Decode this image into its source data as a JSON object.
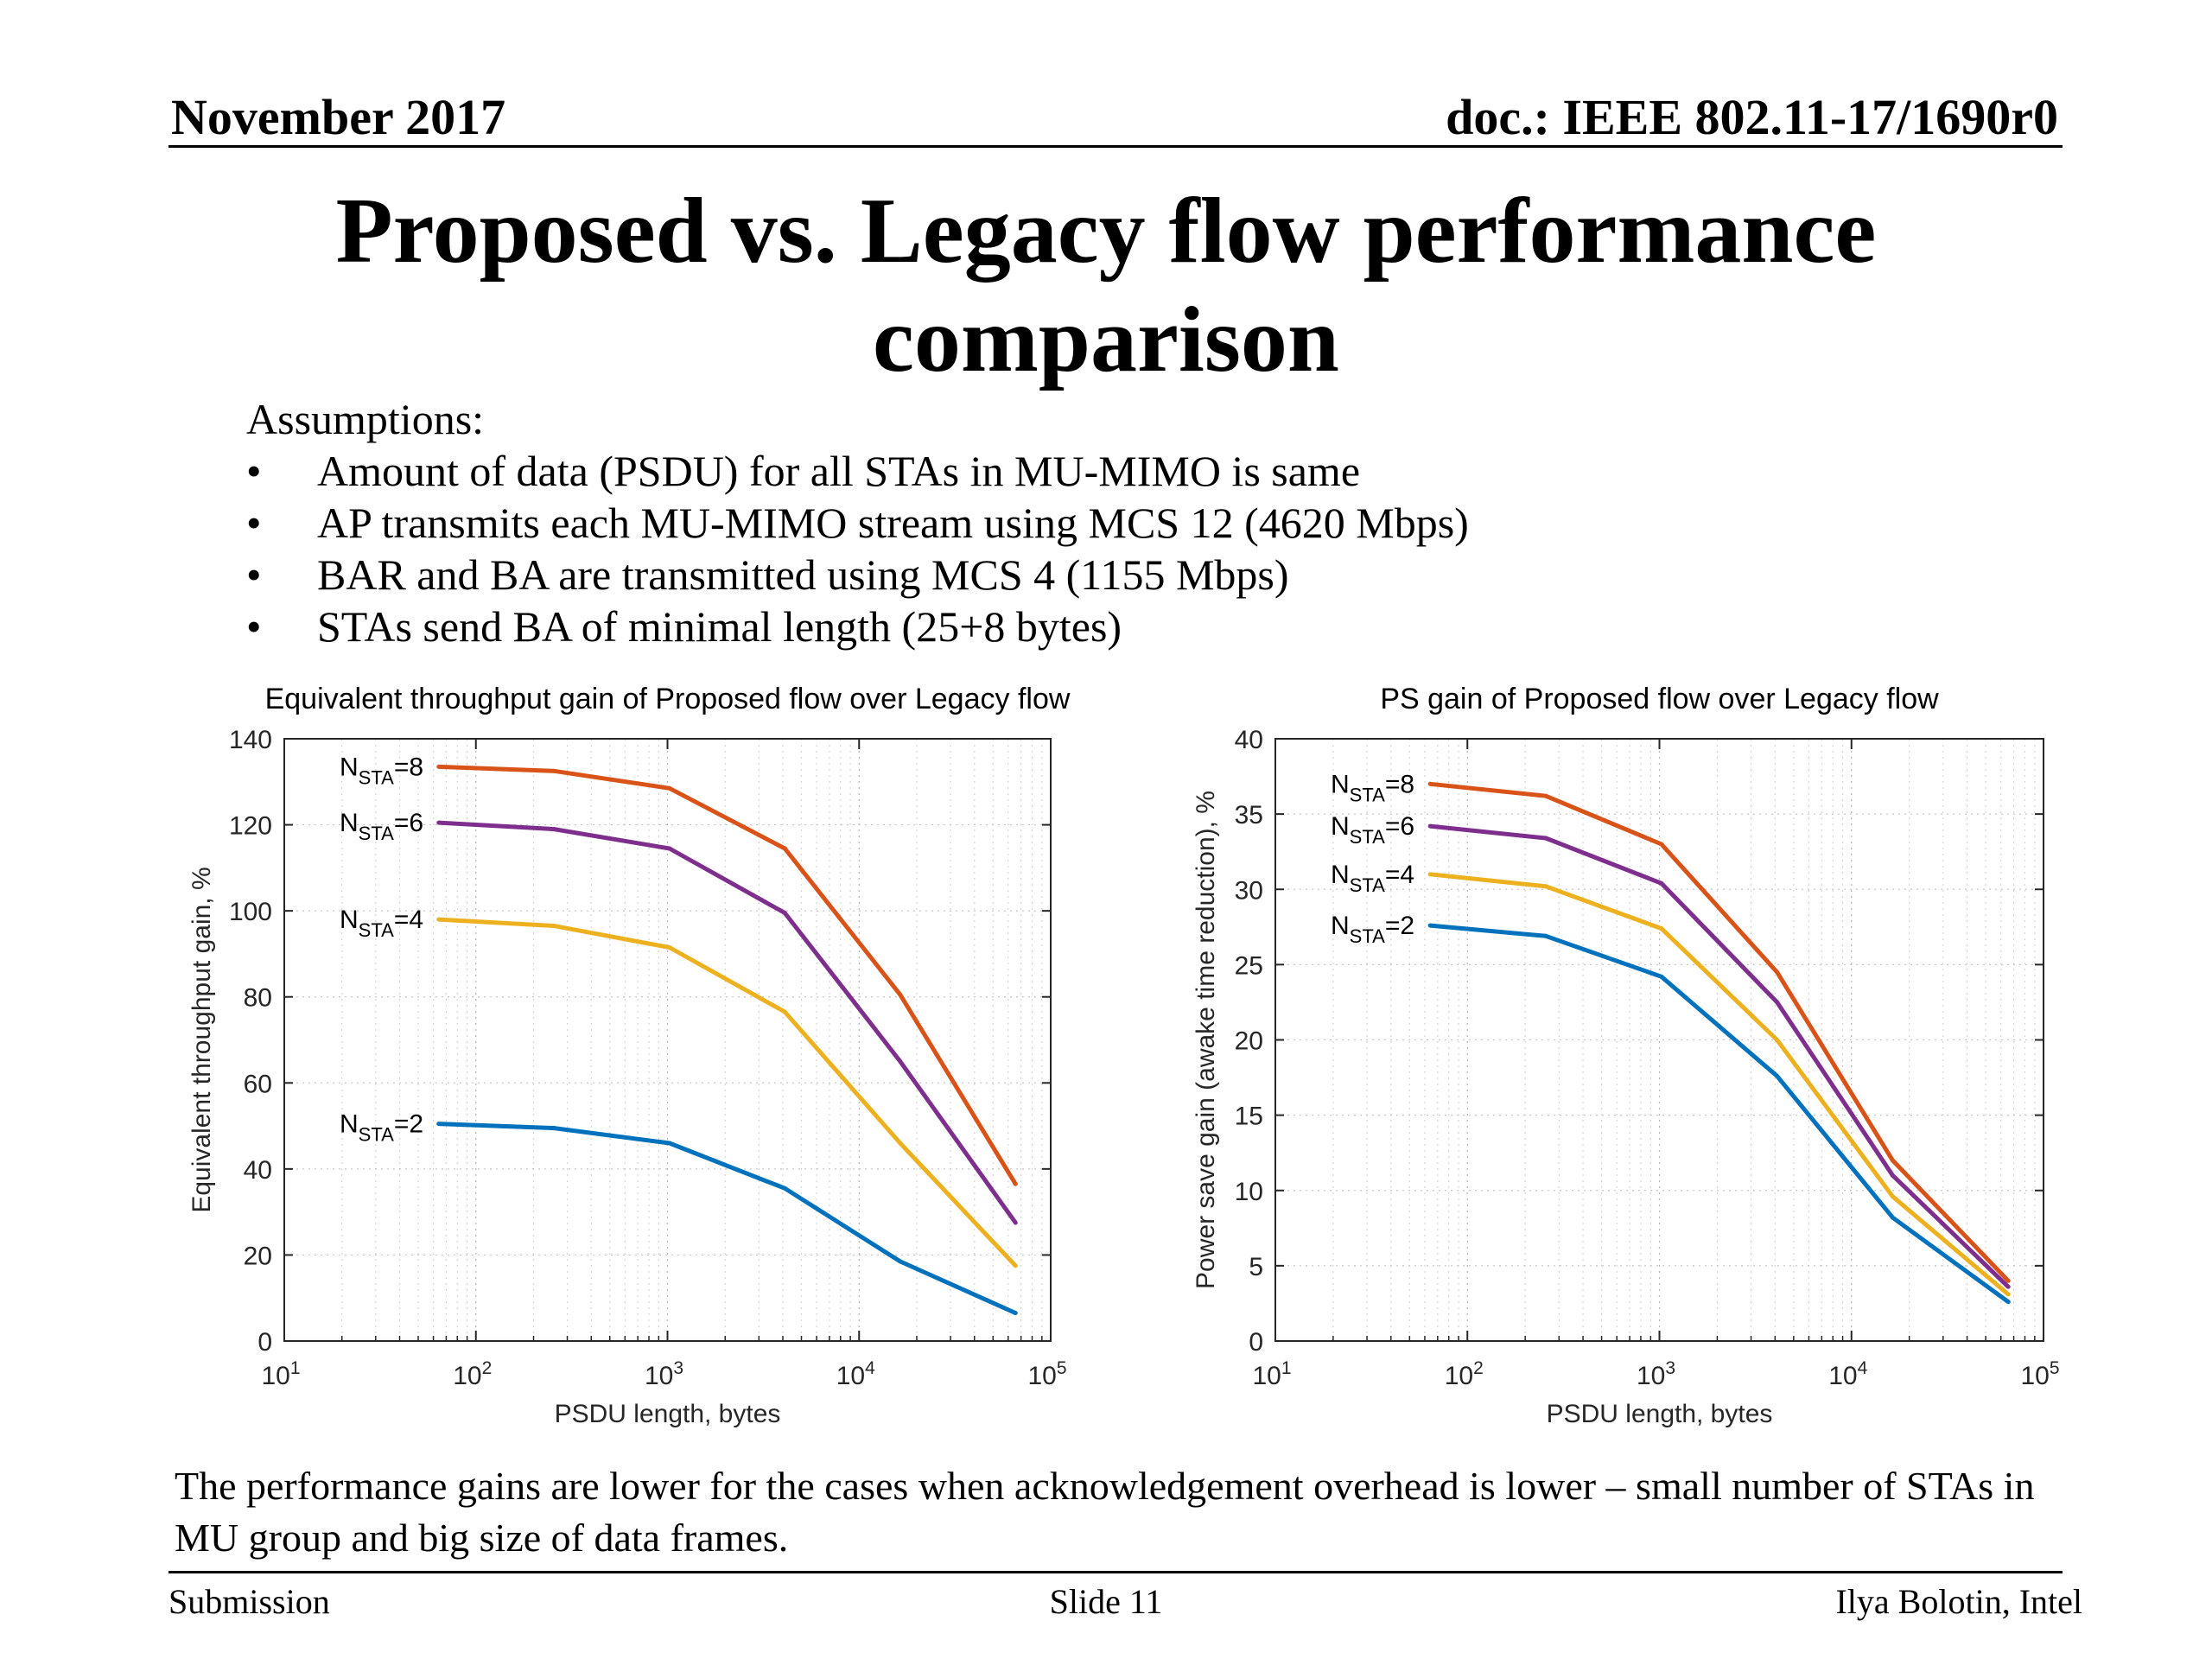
{
  "header": {
    "date": "November 2017",
    "doc": "doc.: IEEE 802.11-17/1690r0"
  },
  "title": {
    "line1": "Proposed vs. Legacy flow performance",
    "line2": "comparison"
  },
  "assumptions": {
    "heading": "Assumptions:",
    "bullets": [
      "Amount of data (PSDU) for all STAs in MU-MIMO is same",
      "AP transmits each MU-MIMO stream using MCS 12 (4620 Mbps)",
      "BAR and BA are transmitted using MCS 4 (1155 Mbps)",
      "STAs send BA of minimal length (25+8 bytes)"
    ]
  },
  "body_text": "The performance gains are lower for the cases when acknowledgement overhead is lower – small number of STAs in MU group and big size of data frames.",
  "footer": {
    "left": "Submission",
    "center": "Slide 11",
    "right": "Ilya Bolotin, Intel"
  },
  "chart_data": [
    {
      "type": "line",
      "title": "Equivalent throughput gain of Proposed flow over Legacy flow",
      "xlabel": "PSDU length, bytes",
      "ylabel": "Equivalent throughput gain, %",
      "xscale": "log",
      "xlim": [
        10,
        100000
      ],
      "ylim": [
        0,
        140
      ],
      "yticks": [
        0,
        20,
        40,
        60,
        80,
        100,
        120,
        140
      ],
      "grid": true,
      "x": [
        64,
        256,
        1024,
        4096,
        16384,
        65536
      ],
      "series": [
        {
          "name": "N_STA=8",
          "color": "#D95319",
          "values": [
            133.5,
            132.5,
            128.5,
            114.5,
            80.5,
            36.5
          ]
        },
        {
          "name": "N_STA=6",
          "color": "#7E2F8E",
          "values": [
            120.5,
            119.0,
            114.5,
            99.5,
            65.0,
            27.5
          ]
        },
        {
          "name": "N_STA=4",
          "color": "#EDB120",
          "values": [
            98.0,
            96.5,
            91.5,
            76.5,
            46.0,
            17.5
          ]
        },
        {
          "name": "N_STA=2",
          "color": "#0072BD",
          "values": [
            50.5,
            49.5,
            46.0,
            35.5,
            18.5,
            6.5
          ]
        }
      ]
    },
    {
      "type": "line",
      "title": "PS gain of Proposed flow over Legacy flow",
      "xlabel": "PSDU length, bytes",
      "ylabel": "Power save gain (awake time reduction), %",
      "xscale": "log",
      "xlim": [
        10,
        100000
      ],
      "ylim": [
        0,
        40
      ],
      "yticks": [
        0,
        5,
        10,
        15,
        20,
        25,
        30,
        35,
        40
      ],
      "grid": true,
      "x": [
        64,
        256,
        1024,
        4096,
        16384,
        65536
      ],
      "series": [
        {
          "name": "N_STA=8",
          "color": "#D95319",
          "values": [
            37.0,
            36.2,
            33.0,
            24.5,
            12.0,
            4.0
          ]
        },
        {
          "name": "N_STA=6",
          "color": "#7E2F8E",
          "values": [
            34.2,
            33.4,
            30.4,
            22.5,
            11.0,
            3.6
          ]
        },
        {
          "name": "N_STA=4",
          "color": "#EDB120",
          "values": [
            31.0,
            30.2,
            27.4,
            20.0,
            9.6,
            3.1
          ]
        },
        {
          "name": "N_STA=2",
          "color": "#0072BD",
          "values": [
            27.6,
            26.9,
            24.2,
            17.6,
            8.2,
            2.6
          ]
        }
      ]
    }
  ]
}
